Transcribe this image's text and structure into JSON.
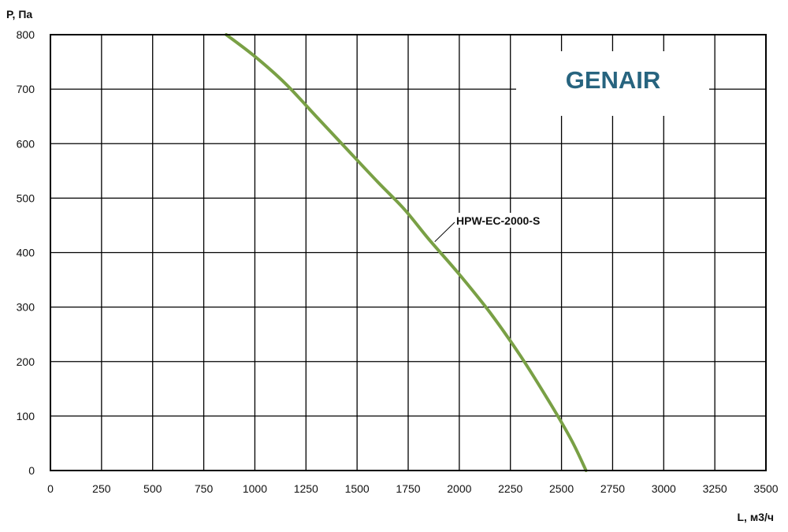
{
  "colors": {
    "curve": "#79a045",
    "grid": "#000000",
    "logo": "#27647f"
  },
  "logo": {
    "text": "GENAIR"
  },
  "chart_data": {
    "type": "line",
    "title": "",
    "xlabel": "L, м3/ч",
    "ylabel": "P, Па",
    "xlim": [
      0,
      3500
    ],
    "ylim": [
      0,
      800
    ],
    "grid": true,
    "x_ticks": [
      0,
      250,
      500,
      750,
      1000,
      1250,
      1500,
      1750,
      2000,
      2250,
      2500,
      2750,
      3000,
      3250,
      3500
    ],
    "y_ticks": [
      0,
      100,
      200,
      300,
      400,
      500,
      600,
      700,
      800
    ],
    "series": [
      {
        "name": "HPW-EC-2000-S",
        "x": [
          860,
          1000,
          1150,
          1300,
          1450,
          1600,
          1730,
          1850,
          2000,
          2150,
          2300,
          2450,
          2550,
          2620
        ],
        "y": [
          800,
          760,
          710,
          650,
          590,
          530,
          480,
          425,
          360,
          290,
          210,
          120,
          55,
          0
        ]
      }
    ]
  }
}
